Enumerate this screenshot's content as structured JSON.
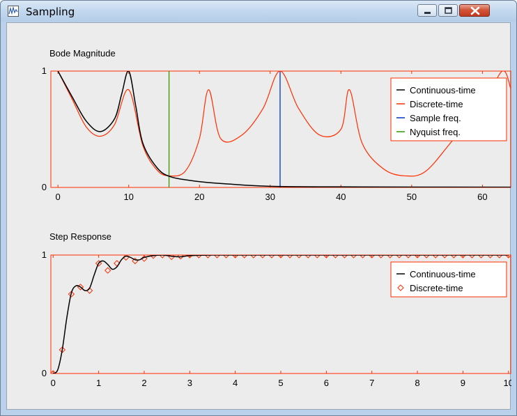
{
  "window": {
    "title": "Sampling",
    "icon": "waveform-app-icon",
    "controls": [
      "minimize-icon",
      "maximize-icon",
      "close-icon"
    ]
  },
  "colors": {
    "continuous": "#000000",
    "discrete": "#ff2d00",
    "sample_freq": "#0033cc",
    "nyquist_freq": "#339900",
    "plot_frame": "#ff2d00",
    "client_bg": "#ececec"
  },
  "chart_data": [
    {
      "type": "line",
      "title": "Bode Magnitude",
      "xlim": [
        -1,
        64
      ],
      "ylim": [
        0,
        1
      ],
      "xticks": [
        0,
        10,
        20,
        30,
        40,
        50,
        60
      ],
      "yticks": [
        0,
        1
      ],
      "grid": false,
      "legend_position": "top-right",
      "series": [
        {
          "name": "Continuous-time",
          "x": [
            0,
            2,
            4,
            6,
            8,
            9,
            10,
            11,
            12,
            14,
            16,
            20,
            24,
            30,
            40,
            64
          ],
          "y": [
            1,
            0.78,
            0.57,
            0.48,
            0.59,
            0.8,
            1.0,
            0.7,
            0.38,
            0.17,
            0.09,
            0.05,
            0.03,
            0.01,
            0.005,
            0.002
          ]
        },
        {
          "name": "Discrete-time",
          "x": [
            0,
            2,
            4,
            6,
            8,
            10,
            12,
            14,
            15.7,
            18,
            20,
            21.3,
            23,
            26,
            29,
            31.4,
            34,
            37,
            40,
            41.2,
            43,
            46,
            49,
            52,
            56,
            60,
            62.8,
            64
          ],
          "y": [
            1,
            0.76,
            0.52,
            0.44,
            0.54,
            0.84,
            0.36,
            0.15,
            0.1,
            0.14,
            0.42,
            0.84,
            0.42,
            0.45,
            0.68,
            1.0,
            0.68,
            0.45,
            0.5,
            0.84,
            0.38,
            0.16,
            0.1,
            0.14,
            0.42,
            0.7,
            1.0,
            0.85
          ]
        },
        {
          "name": "Sample freq.",
          "vline": 31.4
        },
        {
          "name": "Nyquist freq.",
          "vline": 15.7
        }
      ]
    },
    {
      "type": "line",
      "title": "Step Response",
      "xlim": [
        -0.05,
        10.05
      ],
      "ylim": [
        0,
        1
      ],
      "xticks": [
        0,
        1,
        2,
        3,
        4,
        5,
        6,
        7,
        8,
        9,
        10
      ],
      "yticks": [
        0,
        1
      ],
      "grid": false,
      "legend_position": "top-right",
      "series": [
        {
          "name": "Continuous-time",
          "x": [
            0,
            0.1,
            0.2,
            0.3,
            0.4,
            0.5,
            0.6,
            0.7,
            0.8,
            0.9,
            1.0,
            1.1,
            1.2,
            1.3,
            1.4,
            1.5,
            1.6,
            1.7,
            1.8,
            1.9,
            2.0,
            2.2,
            2.4,
            2.6,
            2.8,
            3.0,
            3.5,
            4.0,
            10.0
          ],
          "y": [
            0,
            0.03,
            0.2,
            0.47,
            0.68,
            0.74,
            0.73,
            0.7,
            0.72,
            0.83,
            0.93,
            0.95,
            0.92,
            0.88,
            0.9,
            0.96,
            0.99,
            0.98,
            0.96,
            0.96,
            0.98,
            0.995,
            1.0,
            0.99,
            0.985,
            0.995,
            1.0,
            1.0,
            1.0
          ]
        },
        {
          "name": "Discrete-time",
          "marker": "diamond",
          "x": [
            0,
            0.2,
            0.4,
            0.6,
            0.8,
            1.0,
            1.2,
            1.4,
            1.6,
            1.8,
            2.0,
            2.2,
            2.4,
            2.6,
            2.8,
            3.0,
            3.2,
            3.4,
            3.6,
            3.8,
            4.0,
            4.2,
            4.4,
            4.6,
            4.8,
            5.0,
            5.2,
            5.4,
            5.6,
            5.8,
            6.0,
            6.2,
            6.4,
            6.6,
            6.8,
            7.0,
            7.2,
            7.4,
            7.6,
            7.8,
            8.0,
            8.2,
            8.4,
            8.6,
            8.8,
            9.0,
            9.2,
            9.4,
            9.6,
            9.8,
            10.0
          ],
          "y": [
            0,
            0.2,
            0.67,
            0.73,
            0.7,
            0.93,
            0.87,
            0.93,
            0.98,
            0.95,
            0.97,
            0.995,
            1.0,
            0.985,
            0.99,
            1.0,
            1.0,
            1.0,
            1.0,
            1.0,
            1.0,
            1.0,
            1.0,
            1.0,
            1.0,
            1.0,
            1.0,
            1.0,
            1.0,
            1.0,
            1.0,
            1.0,
            1.0,
            1.0,
            1.0,
            1.0,
            1.0,
            1.0,
            1.0,
            1.0,
            1.0,
            1.0,
            1.0,
            1.0,
            1.0,
            1.0,
            1.0,
            1.0,
            1.0,
            1.0,
            1.0
          ]
        }
      ]
    }
  ]
}
